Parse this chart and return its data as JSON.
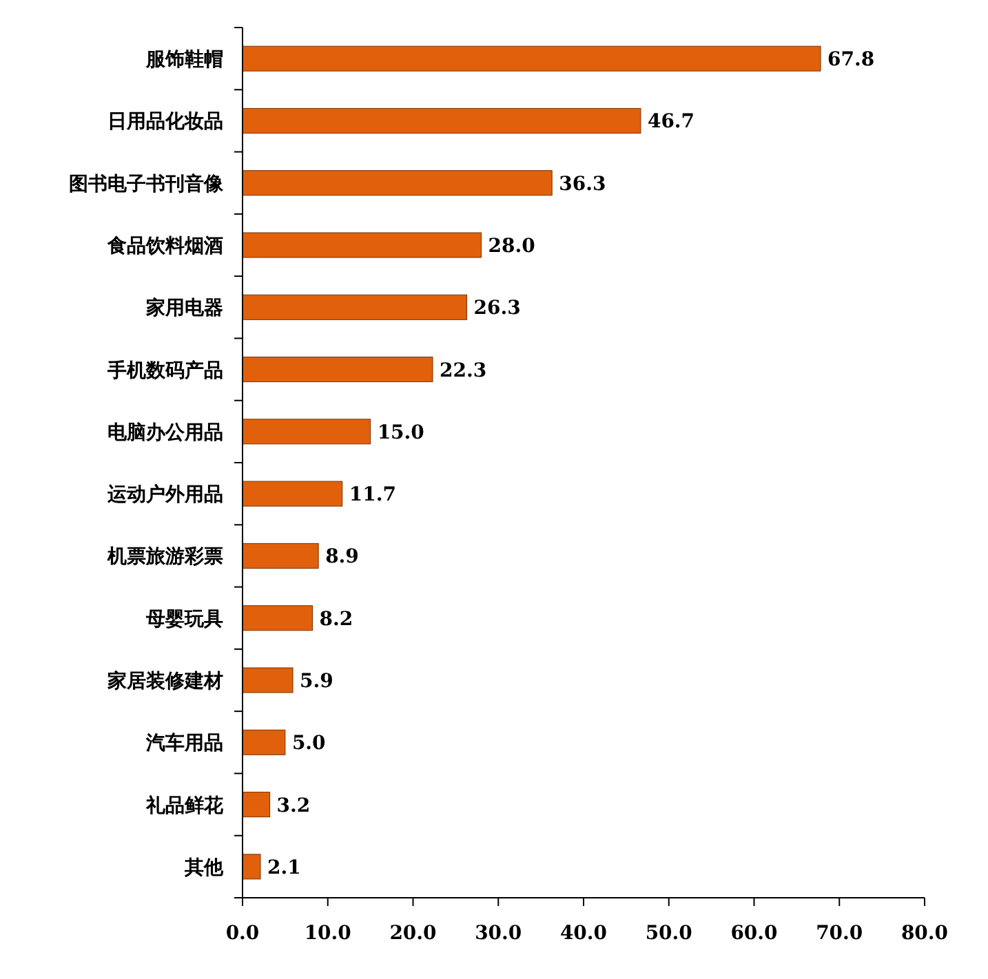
{
  "chart_data": {
    "type": "bar",
    "orientation": "horizontal",
    "categories": [
      "服饰鞋帽",
      "日用品化妆品",
      "图书电子书刊音像",
      "食品饮料烟酒",
      "家用电器",
      "手机数码产品",
      "电脑办公用品",
      "运动户外用品",
      "机票旅游彩票",
      "母婴玩具",
      "家居装修建材",
      "汽车用品",
      "礼品鲜花",
      "其他"
    ],
    "values": [
      67.8,
      46.7,
      36.3,
      28.0,
      26.3,
      22.3,
      15.0,
      11.7,
      8.9,
      8.2,
      5.9,
      5.0,
      3.2,
      2.1
    ],
    "value_labels": [
      "67.8",
      "46.7",
      "36.3",
      "28.0",
      "26.3",
      "22.3",
      "15.0",
      "11.7",
      "8.9",
      "8.2",
      "5.9",
      "5.0",
      "3.2",
      "2.1"
    ],
    "color": "#e0600c",
    "xlim": [
      0,
      80
    ],
    "xticks": [
      {
        "value": 0,
        "label": "0.0"
      },
      {
        "value": 10,
        "label": "10.0"
      },
      {
        "value": 20,
        "label": "20.0"
      },
      {
        "value": 30,
        "label": "30.0"
      },
      {
        "value": 40,
        "label": "40.0"
      },
      {
        "value": 50,
        "label": "50.0"
      },
      {
        "value": 60,
        "label": "60.0"
      },
      {
        "value": 70,
        "label": "70.0"
      },
      {
        "value": 80,
        "label": "80.0"
      }
    ],
    "grid": false
  }
}
